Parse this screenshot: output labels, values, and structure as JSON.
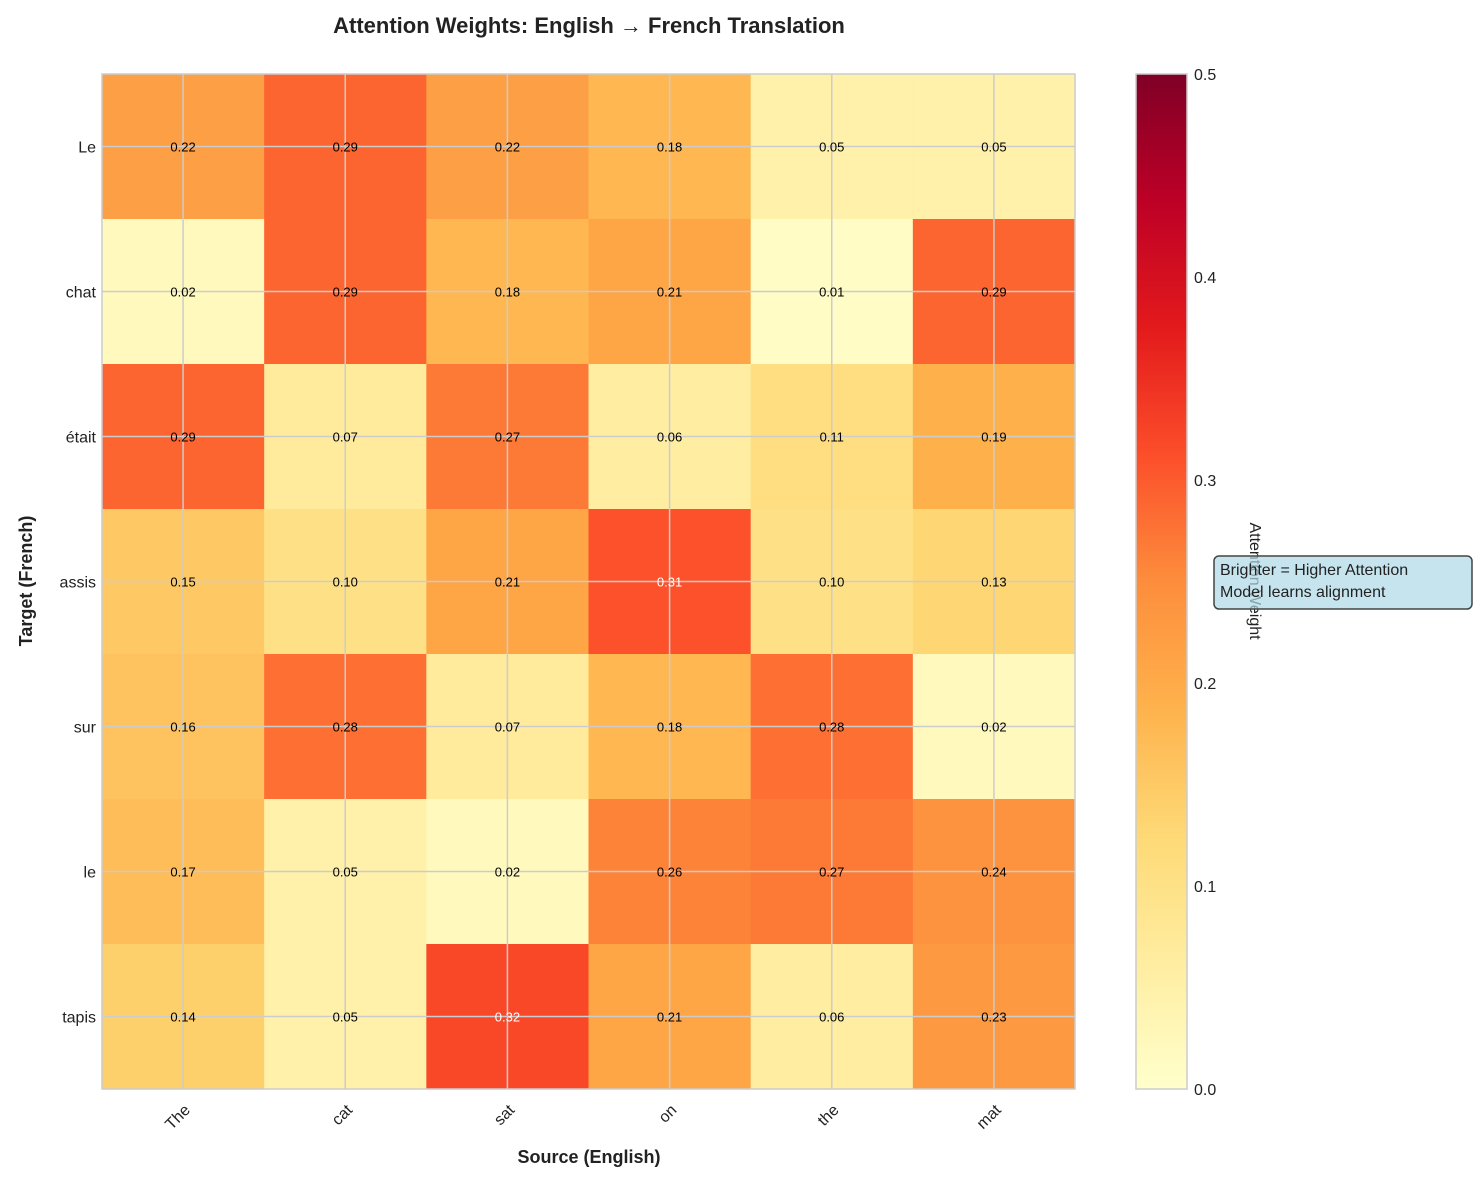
{
  "chart_data": {
    "type": "heatmap",
    "title": "Attention Weights: English → French Translation",
    "xlabel": "Source (English)",
    "ylabel": "Target (French)",
    "x_categories": [
      "The",
      "cat",
      "sat",
      "on",
      "the",
      "mat"
    ],
    "y_categories": [
      "Le",
      "chat",
      "était",
      "assis",
      "sur",
      "le",
      "tapis"
    ],
    "values": [
      [
        0.22,
        0.29,
        0.22,
        0.18,
        0.05,
        0.05
      ],
      [
        0.02,
        0.29,
        0.18,
        0.21,
        0.01,
        0.29
      ],
      [
        0.29,
        0.07,
        0.27,
        0.06,
        0.11,
        0.19
      ],
      [
        0.15,
        0.1,
        0.21,
        0.31,
        0.1,
        0.13
      ],
      [
        0.16,
        0.28,
        0.07,
        0.18,
        0.28,
        0.02
      ],
      [
        0.17,
        0.05,
        0.02,
        0.26,
        0.27,
        0.24
      ],
      [
        0.14,
        0.05,
        0.32,
        0.21,
        0.06,
        0.23
      ]
    ],
    "colormap": "YlOrRd",
    "colorbar": {
      "label": "Attention Weight",
      "range": [
        0,
        0.5
      ],
      "ticks": [
        "0.0",
        "0.1",
        "0.2",
        "0.3",
        "0.4",
        "0.5"
      ]
    },
    "grid": true,
    "annotation": [
      "Brighter = Higher Attention",
      "Model learns alignment"
    ],
    "annotation_color": "#add8e6"
  }
}
